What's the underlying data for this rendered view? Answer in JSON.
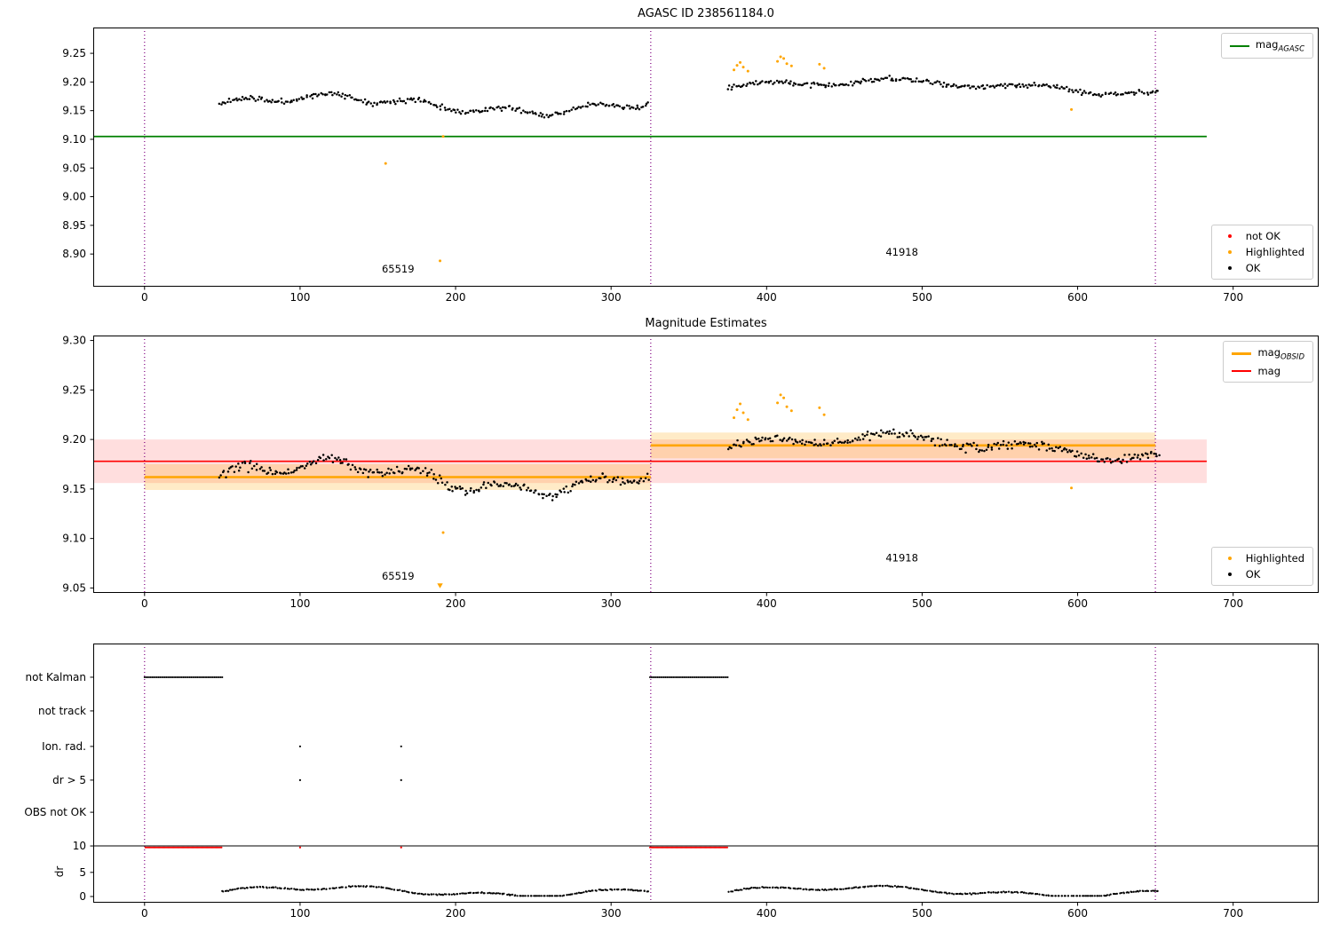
{
  "page": {
    "background": "#ffffff"
  },
  "colors": {
    "ok": "#000000",
    "not_ok": "#ff0000",
    "highlighted": "#ffa500",
    "mag_agasc_line": "#008000",
    "mag_obsid_line": "#ffa500",
    "mag_line": "#ff0000",
    "obsid_divider": "#800080"
  },
  "chart_data": [
    {
      "type": "scatter",
      "title": "AGASC ID 238561184.0",
      "xlim": [
        -33,
        755
      ],
      "ylim": [
        8.843,
        9.295
      ],
      "xticks": [
        {
          "v": 0,
          "label": "0"
        },
        {
          "v": 100,
          "label": "100"
        },
        {
          "v": 200,
          "label": "200"
        },
        {
          "v": 300,
          "label": "300"
        },
        {
          "v": 400,
          "label": "400"
        },
        {
          "v": 500,
          "label": "500"
        },
        {
          "v": 600,
          "label": "600"
        },
        {
          "v": 700,
          "label": "700"
        }
      ],
      "yticks": [
        {
          "v": 8.9,
          "label": "8.90"
        },
        {
          "v": 8.95,
          "label": "8.95"
        },
        {
          "v": 9.0,
          "label": "9.00"
        },
        {
          "v": 9.05,
          "label": "9.05"
        },
        {
          "v": 9.1,
          "label": "9.10"
        },
        {
          "v": 9.15,
          "label": "9.15"
        },
        {
          "v": 9.2,
          "label": "9.20"
        },
        {
          "v": 9.25,
          "label": "9.25"
        }
      ],
      "vlines": [
        {
          "x": 0,
          "color": "#800080"
        },
        {
          "x": 325.5,
          "color": "#800080"
        },
        {
          "x": 650,
          "color": "#800080"
        }
      ],
      "lines": [
        {
          "y": 9.105,
          "x0": -33,
          "x1": 683,
          "color": "#008000",
          "w": 1.8,
          "name": "mag-agasc-line"
        }
      ],
      "clusters": [
        {
          "x0": 48,
          "x1": 324,
          "n": 258,
          "seed": 11,
          "base": 9.161,
          "amp1": 0.013,
          "per1": 42,
          "amp2": 0.006,
          "per2": 9,
          "noise": 0.0065,
          "color": "#000000",
          "size": 1.25,
          "name": "ok-obsid-65519"
        },
        {
          "x0": 375,
          "x1": 652,
          "n": 258,
          "seed": 22,
          "base": 9.191,
          "amp1": 0.01,
          "per1": 60,
          "amp2": 0.005,
          "per2": 14,
          "noise": 0.0065,
          "color": "#000000",
          "size": 1.25,
          "name": "ok-obsid-41918"
        }
      ],
      "points": [
        {
          "color": "#ffa500",
          "size": 1.5,
          "name": "highlighted",
          "xy": [
            [
              155,
              9.058
            ],
            [
              190,
              8.888
            ],
            [
              192,
              9.105
            ],
            [
              379,
              9.221
            ],
            [
              381,
              9.229
            ],
            [
              383,
              9.234
            ],
            [
              385,
              9.226
            ],
            [
              388,
              9.219
            ],
            [
              407,
              9.236
            ],
            [
              409,
              9.244
            ],
            [
              411,
              9.241
            ],
            [
              413,
              9.232
            ],
            [
              416,
              9.228
            ],
            [
              434,
              9.231
            ],
            [
              437,
              9.224
            ],
            [
              596,
              9.152
            ]
          ]
        }
      ],
      "annotations": [
        {
          "text": "65519",
          "x": 163,
          "y": 8.868
        },
        {
          "text": "41918",
          "x": 487,
          "y": 8.897
        }
      ],
      "legends": [
        {
          "pos": "top-right",
          "entries": [
            {
              "swatch": "line",
              "color": "#008000",
              "lw": 2,
              "label": "mag",
              "sub": "AGASC"
            }
          ]
        },
        {
          "pos": "bottom-right",
          "entries": [
            {
              "swatch": "dot",
              "color": "#ff0000",
              "label": "not OK"
            },
            {
              "swatch": "dot",
              "color": "#ffa500",
              "label": "Highlighted"
            },
            {
              "swatch": "dot",
              "color": "#000000",
              "label": "OK"
            }
          ]
        }
      ]
    },
    {
      "type": "scatter",
      "title": "Magnitude Estimates",
      "xlim": [
        -33,
        755
      ],
      "ylim": [
        9.045,
        9.305
      ],
      "xticks": [
        {
          "v": 0,
          "label": "0"
        },
        {
          "v": 100,
          "label": "100"
        },
        {
          "v": 200,
          "label": "200"
        },
        {
          "v": 300,
          "label": "300"
        },
        {
          "v": 400,
          "label": "400"
        },
        {
          "v": 500,
          "label": "500"
        },
        {
          "v": 600,
          "label": "600"
        },
        {
          "v": 700,
          "label": "700"
        }
      ],
      "yticks": [
        {
          "v": 9.05,
          "label": "9.05"
        },
        {
          "v": 9.1,
          "label": "9.10"
        },
        {
          "v": 9.15,
          "label": "9.15"
        },
        {
          "v": 9.2,
          "label": "9.20"
        },
        {
          "v": 9.25,
          "label": "9.25"
        },
        {
          "v": 9.3,
          "label": "9.30"
        }
      ],
      "vlines": [
        {
          "x": 0,
          "color": "#800080"
        },
        {
          "x": 325.5,
          "color": "#800080"
        },
        {
          "x": 650,
          "color": "#800080"
        }
      ],
      "bands": [
        {
          "x0": -33,
          "x1": 683,
          "y0": 9.156,
          "y1": 9.2,
          "color": "#ff0000",
          "opacity": 0.13,
          "name": "mag-error-band"
        },
        {
          "x0": 0,
          "x1": 325.5,
          "y0": 9.149,
          "y1": 9.175,
          "color": "#ffa500",
          "opacity": 0.22,
          "name": "obsid-65519-band"
        },
        {
          "x0": 325.5,
          "x1": 650,
          "y0": 9.181,
          "y1": 9.207,
          "color": "#ffa500",
          "opacity": 0.22,
          "name": "obsid-41918-band"
        }
      ],
      "lines": [
        {
          "y": 9.162,
          "x0": 0,
          "x1": 325.5,
          "color": "#ffa500",
          "w": 2.6,
          "name": "mag-obsid-65519-line"
        },
        {
          "y": 9.194,
          "x0": 325.5,
          "x1": 650,
          "color": "#ffa500",
          "w": 2.6,
          "name": "mag-obsid-41918-line"
        },
        {
          "y": 9.178,
          "x0": -33,
          "x1": 683,
          "color": "#ff0000",
          "w": 1.6,
          "name": "mag-line"
        }
      ],
      "clusters": [
        {
          "x0": 48,
          "x1": 324,
          "n": 258,
          "seed": 33,
          "base": 9.162,
          "amp1": 0.013,
          "per1": 42,
          "amp2": 0.006,
          "per2": 9,
          "noise": 0.0065,
          "color": "#000000",
          "size": 1.25,
          "name": "ok-obsid-65519"
        },
        {
          "x0": 375,
          "x1": 652,
          "n": 258,
          "seed": 44,
          "base": 9.192,
          "amp1": 0.01,
          "per1": 60,
          "amp2": 0.005,
          "per2": 14,
          "noise": 0.0065,
          "color": "#000000",
          "size": 1.25,
          "name": "ok-obsid-41918"
        }
      ],
      "points": [
        {
          "color": "#ffa500",
          "size": 1.5,
          "name": "highlighted",
          "xy": [
            [
              192,
              9.106
            ],
            [
              379,
              9.222
            ],
            [
              381,
              9.23
            ],
            [
              383,
              9.236
            ],
            [
              385,
              9.227
            ],
            [
              388,
              9.22
            ],
            [
              407,
              9.237
            ],
            [
              409,
              9.245
            ],
            [
              411,
              9.242
            ],
            [
              413,
              9.233
            ],
            [
              416,
              9.229
            ],
            [
              434,
              9.232
            ],
            [
              437,
              9.225
            ],
            [
              596,
              9.151
            ]
          ]
        }
      ],
      "markers": [
        {
          "type": "tri-down",
          "x": 190,
          "y": 9.052,
          "color": "#ffa500",
          "name": "clipped-low-point-marker"
        }
      ],
      "annotations": [
        {
          "text": "65519",
          "x": 163,
          "y": 9.0585
        },
        {
          "text": "41918",
          "x": 487,
          "y": 9.077
        }
      ],
      "legends": [
        {
          "pos": "top-right",
          "entries": [
            {
              "swatch": "line",
              "color": "#ffa500",
              "lw": 3,
              "label": "mag",
              "sub": "OBSID"
            },
            {
              "swatch": "line",
              "color": "#ff0000",
              "lw": 2,
              "label": "mag"
            }
          ]
        },
        {
          "pos": "bottom-right",
          "entries": [
            {
              "swatch": "dot",
              "color": "#ffa500",
              "label": "Highlighted"
            },
            {
              "swatch": "dot",
              "color": "#000000",
              "label": "OK"
            }
          ]
        }
      ]
    },
    {
      "type": "scatter",
      "title": "",
      "ylabel": "dr",
      "xlim": [
        -33,
        755
      ],
      "ylim": [
        1,
        0
      ],
      "dr0f": 0.976,
      "dr10f": 0.781,
      "xticks": [
        {
          "v": 0,
          "label": "0"
        },
        {
          "v": 100,
          "label": "100"
        },
        {
          "v": 200,
          "label": "200"
        },
        {
          "v": 300,
          "label": "300"
        },
        {
          "v": 400,
          "label": "400"
        },
        {
          "v": 500,
          "label": "500"
        },
        {
          "v": 600,
          "label": "600"
        },
        {
          "v": 700,
          "label": "700"
        }
      ],
      "yticks": [
        {
          "f": 0.13,
          "label": "not Kalman"
        },
        {
          "f": 0.26,
          "label": "not track"
        },
        {
          "f": 0.397,
          "label": "Ion. rad."
        },
        {
          "f": 0.527,
          "label": "dr > 5"
        },
        {
          "f": 0.651,
          "label": "OBS not OK"
        },
        {
          "f": 0.781,
          "label": "10"
        },
        {
          "f": 0.883,
          "label": "5"
        },
        {
          "f": 0.976,
          "label": "0"
        }
      ],
      "vlines": [
        {
          "x": 0,
          "color": "#800080"
        },
        {
          "x": 325.5,
          "color": "#800080"
        },
        {
          "x": 650,
          "color": "#800080"
        }
      ],
      "lines": [
        {
          "f": 0.781,
          "x0": -33,
          "x1": 755,
          "color": "#000000",
          "w": 1,
          "name": "dr-10-limit-line"
        }
      ],
      "rowpoints": [
        {
          "f": 0.13,
          "x0": 0,
          "x1": 50,
          "step": 1,
          "color": "#000000",
          "size": 1.0,
          "name": "not-kalman-flags-obsid-65519"
        },
        {
          "f": 0.13,
          "x0": 325,
          "x1": 375,
          "step": 1,
          "color": "#000000",
          "size": 1.0,
          "name": "not-kalman-flags-obsid-41918"
        },
        {
          "v": 9.7,
          "x0": 0.5,
          "x1": 50,
          "step": 0.7,
          "color": "#ff0000",
          "size": 1.0,
          "name": "dr-clipped-red-obsid-65519"
        },
        {
          "v": 9.7,
          "x0": 325,
          "x1": 375,
          "step": 0.7,
          "color": "#ff0000",
          "size": 1.0,
          "name": "dr-clipped-red-obsid-41918"
        }
      ],
      "points": [
        {
          "color": "#000000",
          "space": "frac",
          "size": 1.1,
          "name": "ion-rad-flags",
          "xy": [
            [
              100,
              0.397
            ],
            [
              165,
              0.397
            ]
          ]
        },
        {
          "color": "#000000",
          "space": "frac",
          "size": 1.1,
          "name": "dr-gt-5-flags",
          "xy": [
            [
              100,
              0.527
            ],
            [
              165,
              0.527
            ]
          ]
        },
        {
          "color": "#ff0000",
          "space": "dr",
          "size": 1.1,
          "name": "dr-red-singles",
          "xy": [
            [
              100,
              9.7
            ],
            [
              165,
              9.7
            ]
          ]
        }
      ],
      "clusters": [
        {
          "space": "dr",
          "x0": 50,
          "x1": 324,
          "n": 265,
          "seed": 55,
          "base": 1.0,
          "amp1": 0.8,
          "per1": 40,
          "amp2": 0.45,
          "per2": 12,
          "noise": 0.16,
          "min": 0.12,
          "color": "#000000",
          "size": 1.1,
          "name": "dr-ok-obsid-65519"
        },
        {
          "space": "dr",
          "x0": 376,
          "x1": 652,
          "n": 265,
          "seed": 66,
          "base": 1.0,
          "amp1": 0.8,
          "per1": 46,
          "amp2": 0.45,
          "per2": 13,
          "noise": 0.16,
          "min": 0.12,
          "color": "#000000",
          "size": 1.1,
          "name": "dr-ok-obsid-41918"
        }
      ],
      "annotations": [],
      "legends": []
    }
  ]
}
